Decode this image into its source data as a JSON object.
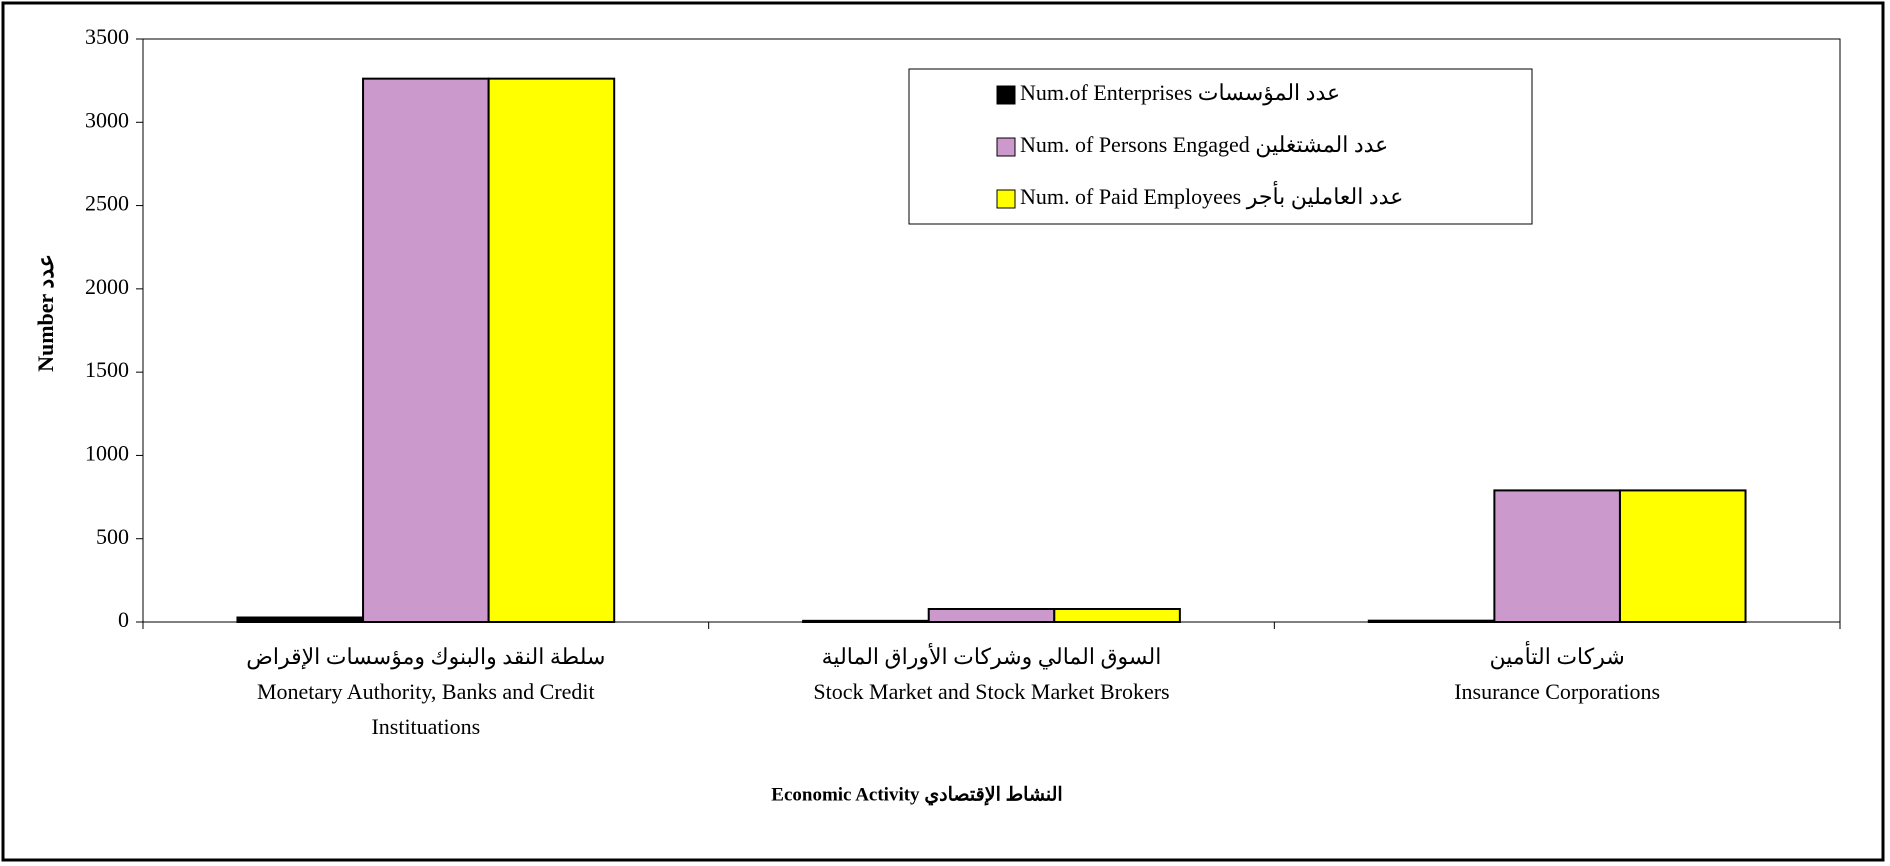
{
  "chart_data": {
    "type": "bar",
    "y_axis_label": "Number   عدد",
    "x_axis_label": "Economic Activity    النشاط الإقتصادي",
    "categories": [
      [
        "سلطة النقد والبنوك ومؤسسات الإقراض",
        "Monetary Authority, Banks and Credit",
        "Instituations"
      ],
      [
        "السوق المالي وشركات الأوراق المالية",
        "Stock Market and Stock Market Brokers"
      ],
      [
        "شركات التأمين",
        "Insurance Corporations"
      ]
    ],
    "series": [
      {
        "name": "Num.of Enterprises عدد  المؤسسات",
        "color": "#000000",
        "values": [
          27,
          7,
          8
        ]
      },
      {
        "name": "Num. of Persons  Engaged عدد المشتغلين",
        "color": "#cc99cc",
        "values": [
          3262,
          78,
          790
        ]
      },
      {
        "name": "Num. of Paid Employees عدد العاملين بأجر",
        "color": "#ffff00",
        "values": [
          3262,
          78,
          790
        ]
      }
    ],
    "ylim": [
      0,
      3500
    ],
    "yticks": [
      0,
      500,
      1000,
      1500,
      2000,
      2500,
      3000,
      3500
    ],
    "legend": "top-right"
  }
}
